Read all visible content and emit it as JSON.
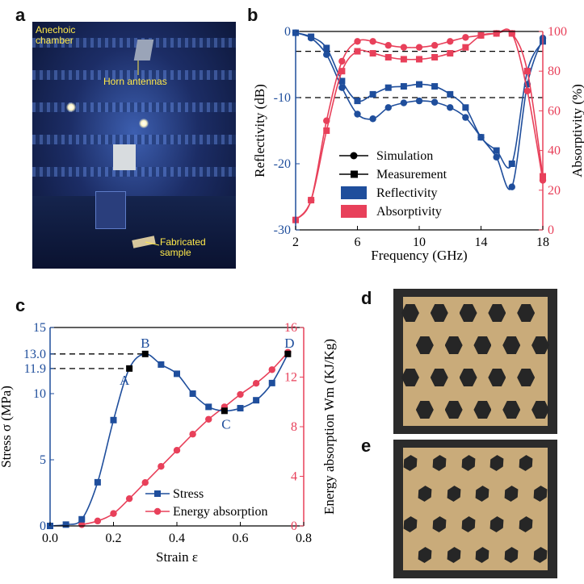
{
  "panels": {
    "a": "a",
    "b": "b",
    "c": "c",
    "d": "d",
    "e": "e"
  },
  "photo_a": {
    "label_chamber": "Anechoic\nchamber",
    "label_antennas": "Horn antennas",
    "label_sample": "Fabricated\nsample"
  },
  "colors": {
    "blue": "#1f4e9c",
    "red": "#e8405a",
    "black": "#000000"
  },
  "chart_data": [
    {
      "type": "line",
      "xlabel": "Frequency (GHz)",
      "ylabel": "Reflectivity (dB)",
      "y2label": "Absorptivity (%)",
      "xlim": [
        2,
        18
      ],
      "ylim": [
        -30,
        0
      ],
      "y2lim": [
        0,
        100
      ],
      "xticks": [
        2,
        6,
        10,
        14,
        18
      ],
      "xtick_labels": [
        "2",
        "6",
        "10",
        "14",
        "18"
      ],
      "yticks": [
        0,
        -10,
        -20,
        -30
      ],
      "ytick_labels": [
        "0",
        "-10",
        "-20",
        "-30"
      ],
      "y2ticks": [
        0,
        20,
        40,
        60,
        80,
        100
      ],
      "y2tick_labels": [
        "0",
        "20",
        "40",
        "60",
        "80",
        "100"
      ],
      "reference_lines_db": [
        -3,
        -10
      ],
      "legend": {
        "markers": [
          "Simulation",
          "Measurement"
        ],
        "colors": [
          "Reflectivity",
          "Absorptivity"
        ],
        "placement": "lower-center"
      },
      "series": [
        {
          "kind": "reflectivity-simulation",
          "color": "blue",
          "x": [
            2,
            3,
            4,
            5,
            6,
            7,
            8,
            9,
            10,
            11,
            12,
            13,
            14,
            15,
            16,
            17,
            18
          ],
          "values": [
            -0.2,
            -1.0,
            -3.5,
            -8.5,
            -12.5,
            -13.2,
            -11.5,
            -10.8,
            -10.5,
            -10.7,
            -11.5,
            -13.0,
            -16.0,
            -19.0,
            -23.5,
            -8.0,
            -1.0
          ]
        },
        {
          "kind": "reflectivity-measurement",
          "color": "blue",
          "x": [
            2,
            3,
            4,
            5,
            6,
            7,
            8,
            9,
            10,
            11,
            12,
            13,
            14,
            15,
            16,
            17,
            18
          ],
          "values": [
            -0.2,
            -0.8,
            -2.5,
            -7.5,
            -10.5,
            -9.5,
            -8.5,
            -8.3,
            -8.0,
            -8.3,
            -9.5,
            -11.5,
            -16.0,
            -18.0,
            -20.0,
            -6.0,
            -1.5
          ]
        },
        {
          "kind": "absorptivity-simulation",
          "color": "red",
          "x": [
            2,
            3,
            4,
            5,
            6,
            7,
            8,
            9,
            10,
            11,
            12,
            13,
            14,
            15,
            16,
            17,
            18
          ],
          "values": [
            5,
            15,
            55,
            85,
            95,
            95,
            93,
            92,
            92,
            93,
            95,
            97,
            98,
            99,
            99,
            70,
            25
          ]
        },
        {
          "kind": "absorptivity-measurement",
          "color": "red",
          "x": [
            2,
            3,
            4,
            5,
            6,
            7,
            8,
            9,
            10,
            11,
            12,
            13,
            14,
            15,
            16,
            17,
            18
          ],
          "values": [
            5,
            15,
            50,
            80,
            90,
            89,
            87,
            86,
            86,
            87,
            89,
            92,
            98,
            99,
            99,
            80,
            27
          ]
        }
      ]
    },
    {
      "type": "line",
      "xlabel": "Strain ε",
      "ylabel": "Stress σ (MPa)",
      "y2label": "Energy absorption Wm (KJ/Kg)",
      "xlim": [
        0.0,
        0.8
      ],
      "ylim": [
        0,
        15
      ],
      "y2lim": [
        0,
        16
      ],
      "xticks": [
        0.0,
        0.2,
        0.4,
        0.6,
        0.8
      ],
      "xtick_labels": [
        "0.0",
        "0.2",
        "0.4",
        "0.6",
        "0.8"
      ],
      "yticks": [
        0,
        5,
        10,
        11.9,
        13.0,
        15
      ],
      "ytick_labels": [
        "0",
        "5",
        "10",
        "11.9",
        "13.0",
        "15"
      ],
      "y2ticks": [
        0,
        4,
        8,
        12,
        16
      ],
      "y2tick_labels": [
        "0",
        "4",
        "8",
        "12",
        "16"
      ],
      "legend": {
        "entries": [
          "Stress",
          "Energy absorption"
        ],
        "placement": "bottom-right"
      },
      "points": [
        {
          "label": "A",
          "x": 0.25,
          "y": 11.9
        },
        {
          "label": "B",
          "x": 0.3,
          "y": 13.0
        },
        {
          "label": "C",
          "x": 0.55,
          "y": 8.7
        },
        {
          "label": "D",
          "x": 0.75,
          "y": 13.0
        }
      ],
      "series": [
        {
          "name": "Stress",
          "color": "blue",
          "x": [
            0.0,
            0.05,
            0.1,
            0.15,
            0.2,
            0.25,
            0.3,
            0.35,
            0.4,
            0.45,
            0.5,
            0.55,
            0.6,
            0.65,
            0.7,
            0.75
          ],
          "values": [
            0,
            0.1,
            0.5,
            3.3,
            8.0,
            11.9,
            13.0,
            12.2,
            11.5,
            10.0,
            9.0,
            8.7,
            8.9,
            9.5,
            10.8,
            13.0
          ]
        },
        {
          "name": "Energy absorption",
          "color": "red",
          "x": [
            0.1,
            0.15,
            0.2,
            0.25,
            0.3,
            0.35,
            0.4,
            0.45,
            0.5,
            0.55,
            0.6,
            0.65,
            0.7,
            0.75
          ],
          "values": [
            0.1,
            0.4,
            1.0,
            2.2,
            3.5,
            4.8,
            6.1,
            7.4,
            8.6,
            9.6,
            10.6,
            11.5,
            12.6,
            14.0
          ]
        }
      ]
    }
  ]
}
